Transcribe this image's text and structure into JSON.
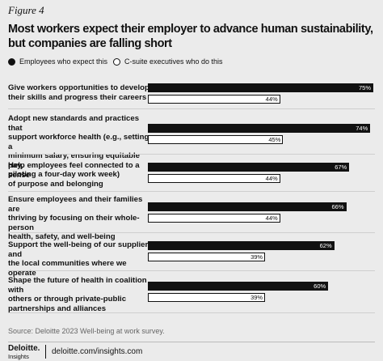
{
  "figure_label": "Figure 4",
  "chart_data": {
    "type": "hbar",
    "title": "Most workers expect their employer to advance human sustainability,\nbut companies are falling short",
    "categories": [
      "Give workers opportunities to develop\ntheir skills and progress their careers",
      "Adopt new standards and practices that\nsupport workforce health (e.g., setting a\nminimum salary, ensuring equitable pay,\npiloting a four-day work week)",
      "Help employees feel connected to a sense\nof purpose and belonging",
      "Ensure employees and their families are\nthriving by focusing on their whole-person\nhealth, safety, and well-being",
      "Support the well-being of our suppliers and\nthe local communities where we operate",
      "Shape the future of health in coalition with\nothers or through private-public\npartnerships and alliances"
    ],
    "series": [
      {
        "name": "Employees who expect this",
        "color": "#111111",
        "values": [
          75,
          74,
          67,
          66,
          62,
          60
        ],
        "value_labels": [
          "75%",
          "74%",
          "67%",
          "66%",
          "62%",
          "60%"
        ]
      },
      {
        "name": "C-suite executives who do this",
        "color": "#ffffff",
        "values": [
          44,
          45,
          44,
          44,
          39,
          39
        ],
        "value_labels": [
          "44%",
          "45%",
          "44%",
          "44%",
          "39%",
          "39%"
        ]
      }
    ]
  },
  "source": "Source: Deloitte 2023 Well-being at work survey.",
  "footer": {
    "brand": "Deloitte.",
    "brand_sub": "Insights",
    "url": "deloitte.com/insights.com"
  }
}
